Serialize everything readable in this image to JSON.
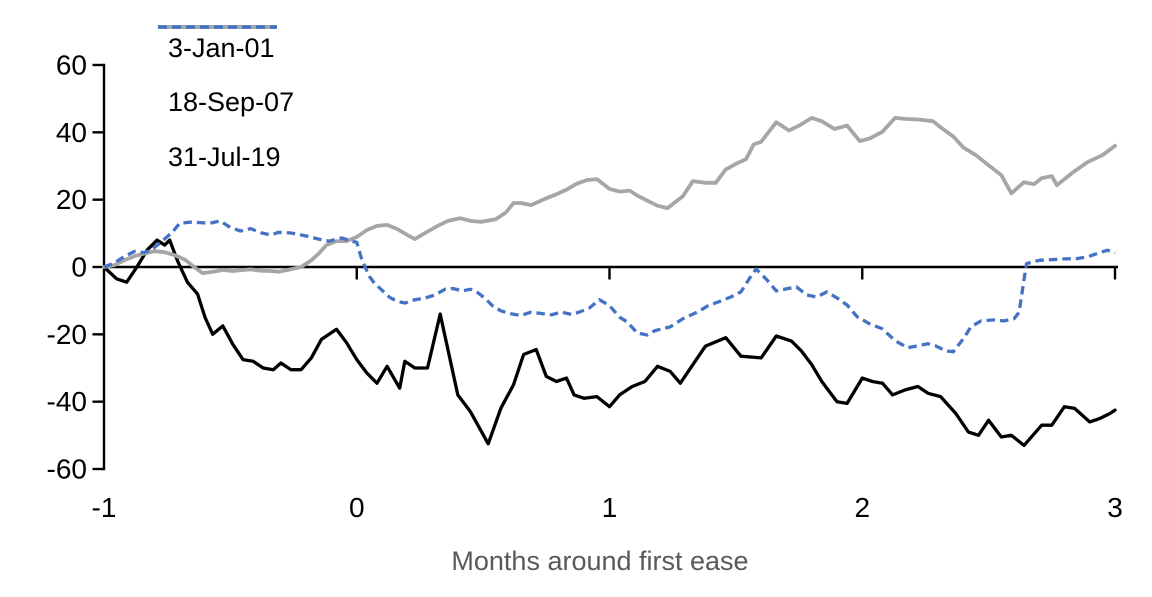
{
  "chart_data": {
    "type": "line",
    "title": "",
    "xlabel": "Months around first ease",
    "ylabel": "",
    "xlim": [
      -1,
      3
    ],
    "ylim": [
      -60,
      60
    ],
    "x_ticks": [
      -1,
      0,
      1,
      2,
      3
    ],
    "y_ticks": [
      60,
      40,
      20,
      0,
      -20,
      -40,
      -60
    ],
    "grid": false,
    "legend_position": "top-left",
    "colors": {
      "background": "#ffffff",
      "axis": "#000000",
      "tick_label": "#000000",
      "axis_title": "#595959"
    },
    "series": [
      {
        "name": "3-Jan-01",
        "color": "#000000",
        "dash": "solid",
        "width": 3.3,
        "x": [
          -1,
          -0.95,
          -0.91,
          -0.87,
          -0.83,
          -0.79,
          -0.76,
          -0.74,
          -0.71,
          -0.67,
          -0.63,
          -0.6,
          -0.57,
          -0.53,
          -0.49,
          -0.45,
          -0.41,
          -0.37,
          -0.33,
          -0.3,
          -0.26,
          -0.22,
          -0.18,
          -0.14,
          -0.08,
          -0.04,
          0,
          0.04,
          0.08,
          0.12,
          0.17,
          0.19,
          0.23,
          0.28,
          0.33,
          0.4,
          0.45,
          0.52,
          0.57,
          0.62,
          0.66,
          0.71,
          0.75,
          0.79,
          0.83,
          0.86,
          0.9,
          0.95,
          1,
          1.04,
          1.09,
          1.14,
          1.19,
          1.24,
          1.28,
          1.33,
          1.38,
          1.46,
          1.52,
          1.6,
          1.66,
          1.72,
          1.76,
          1.8,
          1.84,
          1.9,
          1.94,
          2,
          2.04,
          2.08,
          2.12,
          2.17,
          2.22,
          2.26,
          2.31,
          2.37,
          2.42,
          2.46,
          2.5,
          2.55,
          2.59,
          2.64,
          2.71,
          2.75,
          2.8,
          2.84,
          2.9,
          2.94,
          2.98,
          3
        ],
        "y": [
          0,
          -3.5,
          -4.5,
          0,
          5,
          8,
          6.5,
          8,
          2,
          -4.5,
          -8,
          -15,
          -20,
          -17.5,
          -23,
          -27.5,
          -28,
          -30,
          -30.5,
          -28.5,
          -30.5,
          -30.5,
          -27,
          -21.5,
          -18.5,
          -22.5,
          -27.5,
          -31.5,
          -34.5,
          -29.5,
          -36,
          -28,
          -30,
          -30,
          -14,
          -38,
          -43,
          -52.5,
          -42,
          -35,
          -26,
          -24.5,
          -32.5,
          -34,
          -33,
          -38,
          -39,
          -38.5,
          -41.5,
          -38,
          -35.5,
          -34,
          -29.5,
          -31,
          -34.5,
          -29,
          -23.5,
          -21,
          -26.5,
          -27,
          -20.5,
          -22,
          -25,
          -29,
          -34,
          -40,
          -40.5,
          -33,
          -34,
          -34.5,
          -38,
          -36.5,
          -35.5,
          -37.5,
          -38.5,
          -43.5,
          -49,
          -50,
          -45.5,
          -50.5,
          -50,
          -53,
          -47,
          -47,
          -41.5,
          -42,
          -46,
          -45,
          -43.5,
          -42.5
        ]
      },
      {
        "name": "18-Sep-07",
        "color": "#a6a6a6",
        "dash": "solid",
        "width": 3.8,
        "x": [
          -1,
          -0.96,
          -0.92,
          -0.88,
          -0.84,
          -0.8,
          -0.76,
          -0.72,
          -0.68,
          -0.64,
          -0.61,
          -0.57,
          -0.53,
          -0.49,
          -0.45,
          -0.42,
          -0.38,
          -0.34,
          -0.31,
          -0.27,
          -0.22,
          -0.18,
          -0.15,
          -0.12,
          -0.08,
          -0.04,
          0,
          0.04,
          0.08,
          0.12,
          0.16,
          0.2,
          0.23,
          0.27,
          0.32,
          0.36,
          0.41,
          0.45,
          0.49,
          0.55,
          0.59,
          0.62,
          0.65,
          0.69,
          0.74,
          0.79,
          0.83,
          0.87,
          0.91,
          0.95,
          1,
          1.04,
          1.08,
          1.11,
          1.15,
          1.19,
          1.23,
          1.29,
          1.33,
          1.38,
          1.42,
          1.46,
          1.51,
          1.54,
          1.57,
          1.6,
          1.66,
          1.71,
          1.75,
          1.8,
          1.84,
          1.89,
          1.94,
          1.99,
          2.03,
          2.08,
          2.13,
          2.17,
          2.22,
          2.28,
          2.31,
          2.36,
          2.4,
          2.45,
          2.5,
          2.55,
          2.59,
          2.64,
          2.68,
          2.71,
          2.75,
          2.77,
          2.83,
          2.89,
          2.95,
          3
        ],
        "y": [
          0,
          0.5,
          2,
          3.2,
          4,
          4.7,
          4.4,
          3.5,
          2.2,
          -0.2,
          -1.8,
          -1.4,
          -0.9,
          -1.2,
          -0.9,
          -0.7,
          -1.1,
          -1.2,
          -1.4,
          -0.8,
          0,
          2,
          4,
          6.5,
          7.7,
          7.7,
          8.9,
          11,
          12.2,
          12.5,
          11.3,
          9.5,
          8.3,
          10.1,
          12.2,
          13.7,
          14.5,
          13.7,
          13.4,
          14.2,
          16.2,
          19,
          19,
          18.4,
          20.1,
          21.6,
          23,
          24.7,
          25.8,
          26.1,
          23.2,
          22.4,
          22.7,
          21.2,
          19.7,
          18.2,
          17.5,
          21,
          25.5,
          25,
          25,
          29,
          31,
          32,
          36.4,
          37.2,
          43,
          40.5,
          42,
          44.3,
          43.3,
          41,
          42,
          37.4,
          38.2,
          40.2,
          44.3,
          44,
          43.8,
          43.3,
          41.5,
          38.8,
          35.5,
          33.2,
          30.2,
          27.3,
          21.9,
          25.2,
          24.6,
          26.4,
          27,
          24.3,
          27.9,
          31.1,
          33.2,
          36
        ]
      },
      {
        "name": "31-Jul-19",
        "color": "#4472c4",
        "dash": "dashed",
        "width": 3.3,
        "x": [
          -1,
          -0.96,
          -0.92,
          -0.88,
          -0.84,
          -0.81,
          -0.77,
          -0.73,
          -0.7,
          -0.66,
          -0.62,
          -0.58,
          -0.54,
          -0.5,
          -0.46,
          -0.42,
          -0.38,
          -0.34,
          -0.31,
          -0.26,
          -0.2,
          -0.15,
          -0.11,
          -0.06,
          -0.02,
          0,
          0.02,
          0.05,
          0.07,
          0.1,
          0.13,
          0.16,
          0.19,
          0.23,
          0.27,
          0.31,
          0.35,
          0.38,
          0.42,
          0.45,
          0.48,
          0.51,
          0.54,
          0.57,
          0.61,
          0.65,
          0.69,
          0.73,
          0.77,
          0.81,
          0.85,
          0.88,
          0.92,
          0.96,
          1,
          1.04,
          1.07,
          1.11,
          1.15,
          1.18,
          1.24,
          1.29,
          1.35,
          1.39,
          1.43,
          1.48,
          1.52,
          1.56,
          1.58,
          1.62,
          1.66,
          1.7,
          1.74,
          1.78,
          1.82,
          1.86,
          1.9,
          1.94,
          1.98,
          2.03,
          2.08,
          2.13,
          2.18,
          2.22,
          2.26,
          2.29,
          2.33,
          2.36,
          2.4,
          2.43,
          2.47,
          2.52,
          2.56,
          2.6,
          2.62,
          2.65,
          2.7,
          2.75,
          2.8,
          2.85,
          2.89,
          2.93,
          2.97,
          3
        ],
        "y": [
          0,
          1.2,
          3.1,
          4.6,
          4.3,
          5.2,
          7.7,
          10.3,
          13,
          13.3,
          13.2,
          13,
          13.7,
          11.7,
          10.7,
          11.4,
          10.2,
          9.5,
          10.3,
          10.1,
          9.2,
          8.3,
          7.7,
          8.6,
          7.7,
          7.3,
          2.2,
          -2.8,
          -4.8,
          -6.9,
          -9,
          -10.2,
          -10.7,
          -9.7,
          -9.2,
          -8.3,
          -6.6,
          -6.4,
          -7.1,
          -6.6,
          -7.7,
          -9.5,
          -11.7,
          -13,
          -13.9,
          -14.4,
          -13.4,
          -13.8,
          -14.2,
          -13.4,
          -14.1,
          -13.4,
          -12.2,
          -9.7,
          -11.5,
          -14.9,
          -16.3,
          -19.6,
          -20.2,
          -18.9,
          -17.8,
          -15.4,
          -13.3,
          -11.5,
          -10.4,
          -8.9,
          -7.4,
          -2.7,
          -0.6,
          -3.6,
          -7.1,
          -6.5,
          -5.9,
          -8.3,
          -8.9,
          -7.4,
          -9.2,
          -11.3,
          -14.8,
          -16.9,
          -18.4,
          -21.9,
          -24,
          -23.4,
          -22.8,
          -23.4,
          -24.9,
          -25.2,
          -21.3,
          -17.8,
          -16,
          -15.7,
          -16,
          -15.4,
          -13.5,
          1,
          2,
          2.2,
          2.4,
          2.5,
          3,
          4,
          5,
          4.2
        ]
      }
    ]
  }
}
